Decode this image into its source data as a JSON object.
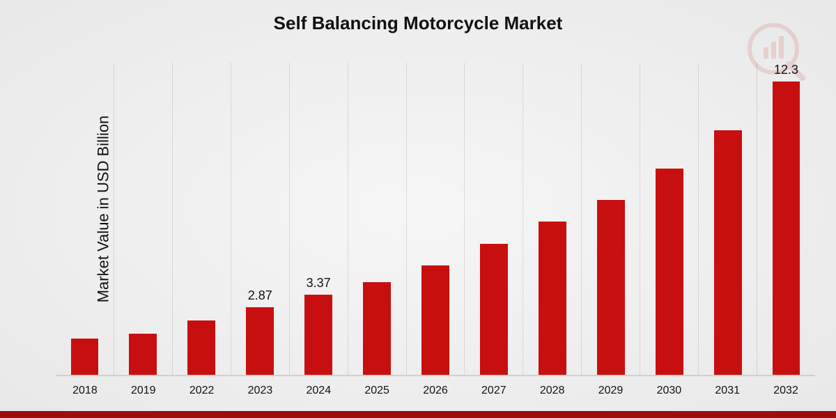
{
  "chart": {
    "type": "bar",
    "title": "Self Balancing Motorcycle Market",
    "ylabel": "Market Value in USD Billion",
    "categories": [
      "2018",
      "2019",
      "2022",
      "2023",
      "2024",
      "2025",
      "2026",
      "2027",
      "2028",
      "2029",
      "2030",
      "2031",
      "2032"
    ],
    "values": [
      1.55,
      1.75,
      2.3,
      2.87,
      3.37,
      3.9,
      4.6,
      5.5,
      6.4,
      7.3,
      8.6,
      10.2,
      12.3
    ],
    "show_value_label": {
      "2023": "2.87",
      "2024": "3.37",
      "2032": "12.3"
    },
    "ymax": 13.0,
    "bar_color": "#c80f0f",
    "background_gradient_inner": "#f6f6f6",
    "background_gradient_outer": "#e8e8e8",
    "grid_color": "rgba(0,0,0,0.10)",
    "baseline_color": "#d0d0d0",
    "footer_color": "#9b0e0e",
    "title_fontsize": 26,
    "ylabel_fontsize": 22,
    "xtick_fontsize": 16,
    "value_label_fontsize": 18,
    "bar_width_pct": 48,
    "watermark": {
      "stroke": "#c80f0f",
      "opacity": 0.12
    }
  }
}
